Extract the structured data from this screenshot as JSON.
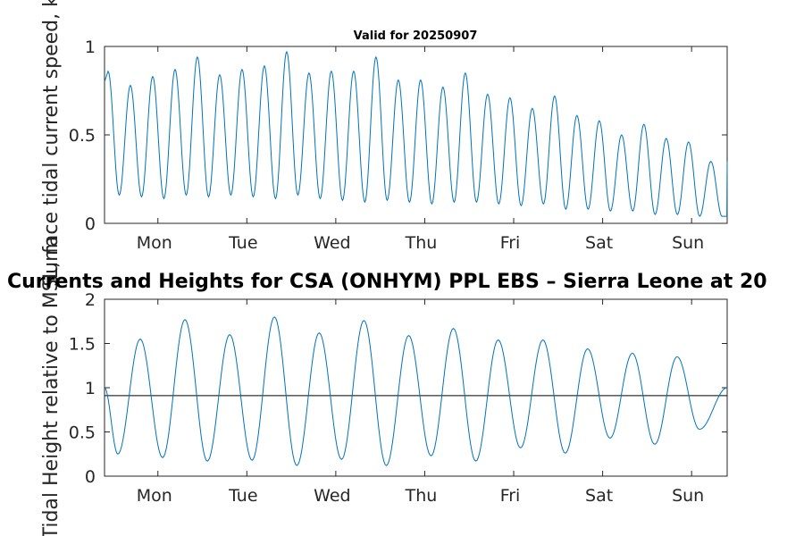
{
  "chart_data": [
    {
      "type": "line",
      "title": "Valid for 20250907",
      "ylabel": "Surface tidal current speed, kn",
      "xlim": [
        0,
        7
      ],
      "ylim": [
        0,
        1
      ],
      "yticks": [
        0,
        0.5,
        1
      ],
      "ytick_labels": [
        "0",
        "0.5",
        "1"
      ],
      "xticks": [
        0.6,
        1.6,
        2.6,
        3.6,
        4.6,
        5.6,
        6.6
      ],
      "xtick_labels": [
        "Mon",
        "Tue",
        "Wed",
        "Thu",
        "Fri",
        "Sat",
        "Sun"
      ],
      "line_color": "#0072BD",
      "series": [
        {
          "peaks": [
            0.86,
            0.78,
            0.83,
            0.87,
            0.94,
            0.84,
            0.87,
            0.89,
            0.97,
            0.85,
            0.86,
            0.86,
            0.94,
            0.81,
            0.81,
            0.77,
            0.85,
            0.73,
            0.71,
            0.65,
            0.72,
            0.61,
            0.58,
            0.5,
            0.56,
            0.48,
            0.46,
            0.35
          ],
          "troughs": [
            0.16,
            0.15,
            0.14,
            0.16,
            0.15,
            0.16,
            0.15,
            0.14,
            0.16,
            0.14,
            0.13,
            0.12,
            0.13,
            0.12,
            0.11,
            0.12,
            0.12,
            0.11,
            0.1,
            0.11,
            0.08,
            0.08,
            0.07,
            0.07,
            0.05,
            0.05,
            0.04,
            0.04
          ]
        }
      ]
    },
    {
      "type": "line",
      "title": "Currents and Heights for CSA (ONHYM) PPL EBS  – Sierra Leone at 20",
      "ylabel": "Tidal Height relative to MSL, m",
      "xlim": [
        0,
        7
      ],
      "ylim": [
        0,
        2
      ],
      "yticks": [
        0,
        0.5,
        1,
        1.5,
        2
      ],
      "ytick_labels": [
        "0",
        "0.5",
        "1",
        "1.5",
        "2"
      ],
      "xticks": [
        0.6,
        1.6,
        2.6,
        3.6,
        4.6,
        5.6,
        6.6
      ],
      "xtick_labels": [
        "Mon",
        "Tue",
        "Wed",
        "Thu",
        "Fri",
        "Sat",
        "Sun"
      ],
      "line_color": "#0072BD",
      "reference_line": 0.91,
      "series": [
        {
          "start": 1.0,
          "highs": [
            1.55,
            1.77,
            1.6,
            1.8,
            1.62,
            1.76,
            1.59,
            1.67,
            1.54,
            1.54,
            1.44,
            1.39,
            1.35
          ],
          "lows": [
            0.25,
            0.21,
            0.17,
            0.18,
            0.12,
            0.19,
            0.12,
            0.23,
            0.17,
            0.32,
            0.26,
            0.43,
            0.36,
            0.53
          ],
          "end": 1.0
        }
      ]
    }
  ]
}
